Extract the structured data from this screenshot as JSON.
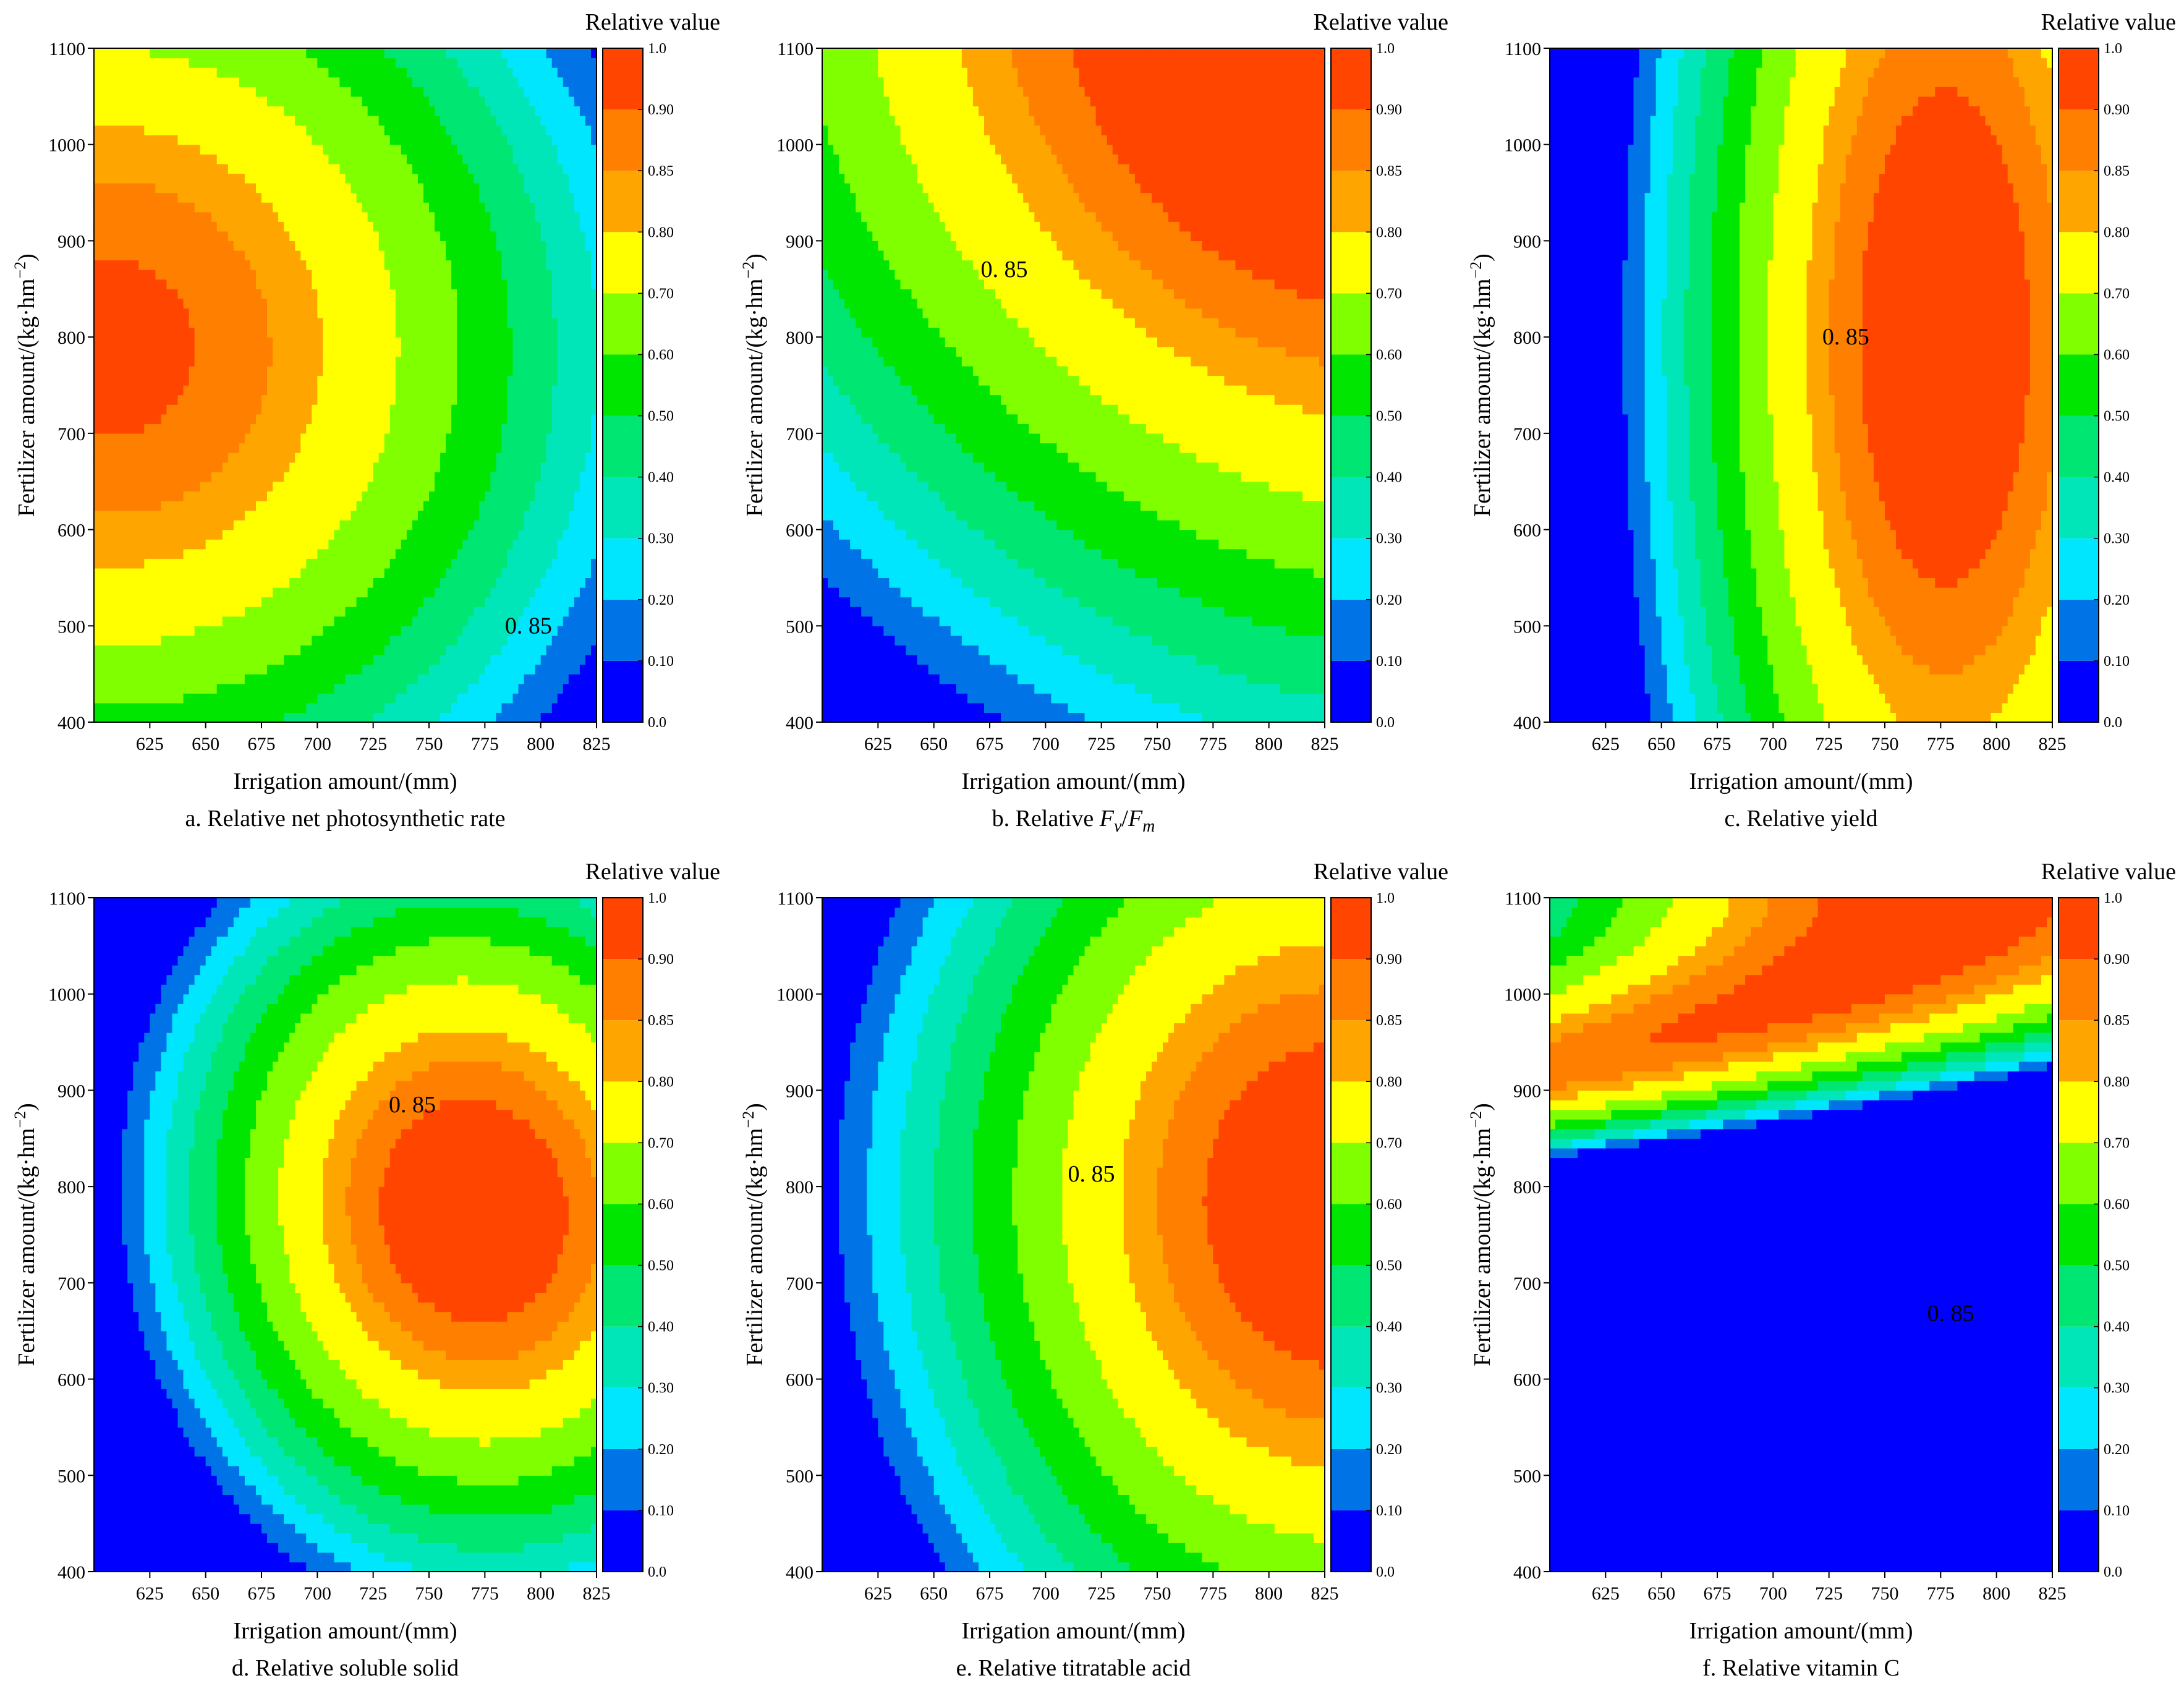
{
  "colorbar": {
    "title": "Relative value",
    "levels": [
      0,
      0.1,
      0.2,
      0.3,
      0.4,
      0.5,
      0.6,
      0.7,
      0.8,
      0.85,
      0.9,
      1.0
    ],
    "tick_labels": [
      "0.0",
      "0.10",
      "0.20",
      "0.30",
      "0.40",
      "0.50",
      "0.60",
      "0.70",
      "0.80",
      "0.85",
      "0.90",
      "1.0"
    ],
    "band_colors": [
      "#0000ff",
      "#0073e6",
      "#00e6ff",
      "#00e6b8",
      "#00e673",
      "#00e600",
      "#7fff00",
      "#ffff00",
      "#ffa500",
      "#ff7f00",
      "#ff4500"
    ]
  },
  "axis": {
    "xlabel": "Irrigation amount/(mm)",
    "ylabel_main": "Fertilizer amount/(kg·hm",
    "ylabel_exp": "−2",
    "ylabel_close": ")",
    "x_ticks": [
      "625",
      "650",
      "675",
      "700",
      "725",
      "750",
      "775",
      "800",
      "825"
    ],
    "y_ticks": [
      "400",
      "500",
      "600",
      "700",
      "800",
      "900",
      "1000",
      "1100"
    ]
  },
  "contour_label": "0. 85",
  "chart_data": [
    {
      "type": "contour",
      "caption": "a. Relative net photosynthetic rate",
      "caption_parts": [
        "a. Relative net photosynthetic rate"
      ],
      "xlabel": "Irrigation amount/(mm)",
      "ylabel": "Fertilizer amount/(kg·hm−2)",
      "xlim": [
        600,
        825
      ],
      "ylim": [
        400,
        1100
      ],
      "labeled_contour": 0.85,
      "label_at": [
        784,
        500
      ],
      "field": {
        "x0": 605,
        "y0": 790,
        "bx": 280,
        "by": 660,
        "e": 0.02,
        "cur": 0,
        "k": 0.92
      }
    },
    {
      "type": "contour",
      "caption": "b. Relative Fv/Fm",
      "caption_parts": [
        "b. Relative ",
        "F",
        "v",
        "/",
        "F",
        "m"
      ],
      "xlabel": "Irrigation amount/(mm)",
      "ylabel": "Fertilizer amount/(kg·hm−2)",
      "xlim": [
        600,
        825
      ],
      "ylim": [
        400,
        1100
      ],
      "labeled_contour": 0.85,
      "label_at": [
        671,
        870
      ],
      "field": {
        "x0": 830,
        "y0": 1120,
        "bx": 380,
        "by": 900,
        "e": 0.35,
        "cur": 0,
        "k": 1
      }
    },
    {
      "type": "contour",
      "caption": "c. Relative yield",
      "caption_parts": [
        "c. Relative yield"
      ],
      "xlabel": "Irrigation amount/(mm)",
      "ylabel": "Fertilizer amount/(kg·hm−2)",
      "xlim": [
        600,
        825
      ],
      "ylim": [
        400,
        1100
      ],
      "labeled_contour": 0.85,
      "label_at": [
        722,
        800
      ],
      "field": {
        "x0": 777,
        "y0": 800,
        "bx": 155,
        "by": 1050,
        "e": 0.0,
        "cur": 0,
        "k": 0.96
      }
    },
    {
      "type": "contour",
      "caption": "d. Relative soluble solid",
      "caption_parts": [
        "d. Relative soluble solid"
      ],
      "xlabel": "Irrigation amount/(mm)",
      "ylabel": "Fertilizer amount/(kg·hm−2)",
      "xlim": [
        600,
        825
      ],
      "ylim": [
        400,
        1100
      ],
      "labeled_contour": 0.85,
      "label_at": [
        732,
        885
      ],
      "field": {
        "x0": 770,
        "y0": 775,
        "bx": 170,
        "by": 470,
        "e": 0.12,
        "cur": 0,
        "k": 0.96
      }
    },
    {
      "type": "contour",
      "caption": "e. Relative titratable acid",
      "caption_parts": [
        "e. Relative titratable acid"
      ],
      "xlabel": "Irrigation amount/(mm)",
      "ylabel": "Fertilizer amount/(kg·hm−2)",
      "xlim": [
        600,
        825
      ],
      "ylim": [
        400,
        1100
      ],
      "labeled_contour": 0.85,
      "label_at": [
        710,
        813
      ],
      "field": {
        "x0": 830,
        "y0": 780,
        "bx": 240,
        "by": 680,
        "e": 0.05,
        "cur": 0,
        "k": 0.96
      }
    },
    {
      "type": "contour",
      "caption": "f. Relative vitamin C",
      "caption_parts": [
        "f. Relative vitamin C"
      ],
      "xlabel": "Irrigation amount/(mm)",
      "ylabel": "Fertilizer amount/(kg·hm−2)",
      "xlim": [
        600,
        825
      ],
      "ylim": [
        400,
        1100
      ],
      "labeled_contour": 0.85,
      "label_at": [
        769,
        668
      ],
      "field": {
        "x0": 775,
        "y0": 1110,
        "bx": 240,
        "by": 720,
        "e": 0.0,
        "cur": 2e-05,
        "k": 0.95
      }
    }
  ]
}
